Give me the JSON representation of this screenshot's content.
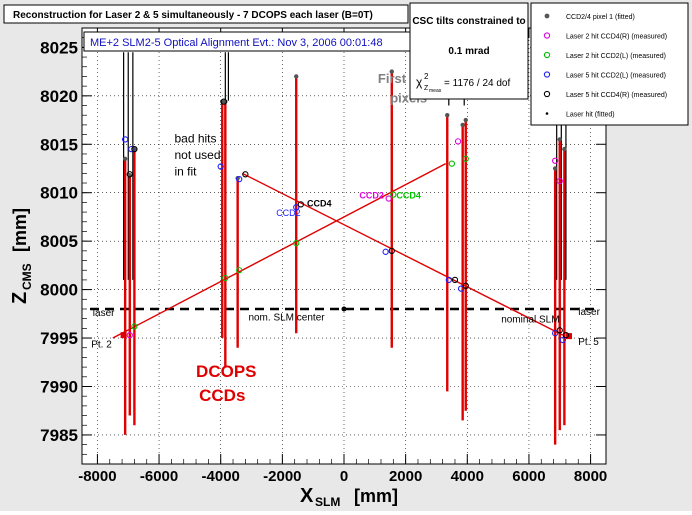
{
  "chart_data": {
    "type": "scatter",
    "title": "Reconstruction for Laser 2 & 5 simultaneously - 7 DCOPS each laser (B=0T)",
    "subtitle": "ME+2 SLM2-5 Optical Alignment Evt.:  Nov 3, 2006 00:01:48",
    "xlabel": "X",
    "xlabel_sub": "SLM",
    "xlabel_unit": "[mm]",
    "ylabel": "Z",
    "ylabel_sub": "CMS",
    "ylabel_unit": "[mm]",
    "xlim": [
      -8500,
      8500
    ],
    "ylim": [
      7982,
      8027
    ],
    "x_ticks": [
      -8000,
      -6000,
      -4000,
      -2000,
      0,
      2000,
      4000,
      6000,
      8000
    ],
    "x_tick_labels": [
      "-8000",
      "-6000",
      "-4000",
      "-2000",
      "0",
      "2000",
      "4000",
      "6000",
      "8000"
    ],
    "y_ticks": [
      7985,
      7990,
      7995,
      8000,
      8005,
      8010,
      8015,
      8020,
      8025
    ],
    "y_tick_labels": [
      "7985",
      "7990",
      "7995",
      "8000",
      "8005",
      "8010",
      "8015",
      "8020",
      "8025"
    ],
    "grid": true,
    "legend_position": "top-right",
    "legend": [
      {
        "label": "CCD2/4 pixel 1 (fitted)",
        "marker": "dot",
        "color": "#555555"
      },
      {
        "label": "Laser 2 hit CCD4(R) (measured)",
        "marker": "circle",
        "color": "#e000e0"
      },
      {
        "label": "Laser 2 hit CCD2(L) (measured)",
        "marker": "circle",
        "color": "#00c000"
      },
      {
        "label": "Laser 5 hit CCD2(L) (measured)",
        "marker": "circle",
        "color": "#2020ff"
      },
      {
        "label": "Laser 5 hit CCD4(R) (measured)",
        "marker": "circle",
        "color": "#000000"
      },
      {
        "label": "Laser hit (fitted)",
        "marker": "small-dot",
        "color": "#000000"
      }
    ],
    "constraint_box": {
      "line1": "CSC tilts constrained to",
      "line2": "0.1 mrad",
      "chi2_symbol": "χ",
      "chi2_exp": "2",
      "chi2_sub": "Z",
      "chi2_subsub": "meas",
      "chi2_text": "= 1176 / 24 dof"
    },
    "ccd_pixel_lines": [
      {
        "x": -7150,
        "top": 8024.5,
        "bottom": 8001.0
      },
      {
        "x": -7000,
        "top": 8024.5,
        "bottom": 8001.0
      },
      {
        "x": -6850,
        "top": 8024.5,
        "bottom": 8001.0
      },
      {
        "x": -3850,
        "top": 8024.5,
        "bottom": 8019.5
      },
      {
        "x": -3750,
        "top": 8024.5,
        "bottom": 8019.5
      },
      {
        "x": 3400,
        "top": 8024.5,
        "bottom": 8019.0
      },
      {
        "x": 3900,
        "top": 8024.5,
        "bottom": 8019.0
      },
      {
        "x": 6900,
        "top": 8024.5,
        "bottom": 8001.0
      },
      {
        "x": 7050,
        "top": 8024.5,
        "bottom": 8001.0
      },
      {
        "x": 7200,
        "top": 8024.5,
        "bottom": 8001.0
      }
    ],
    "dcops_ccds": [
      {
        "x": -7100,
        "top": 8013.5,
        "bottom": 7985.0
      },
      {
        "x": -6950,
        "top": 8011.8,
        "bottom": 7987.0
      },
      {
        "x": -6800,
        "top": 8014.5,
        "bottom": 7986.0
      },
      {
        "x": -3950,
        "top": 8019.4,
        "bottom": 7995.0
      },
      {
        "x": -3850,
        "top": 8019.4,
        "bottom": 7992.0
      },
      {
        "x": -3450,
        "top": 8011.5,
        "bottom": 7994.0
      },
      {
        "x": -1550,
        "top": 8022.0,
        "bottom": 7995.5
      },
      {
        "x": 1550,
        "top": 8022.5,
        "bottom": 7994.0
      },
      {
        "x": 3350,
        "top": 8018.0,
        "bottom": 7989.5
      },
      {
        "x": 3850,
        "top": 8017.0,
        "bottom": 7986.5
      },
      {
        "x": 3950,
        "top": 8017.5,
        "bottom": 7987.5
      },
      {
        "x": 6850,
        "top": 8012.5,
        "bottom": 7984.0
      },
      {
        "x": 7000,
        "top": 8015.5,
        "bottom": 7985.5
      },
      {
        "x": 7150,
        "top": 8014.5,
        "bottom": 7986.0
      }
    ],
    "laser_lines": [
      {
        "name": "Laser 2",
        "points": [
          [
            -7500,
            7995.0
          ],
          [
            3300,
            8013.0
          ]
        ]
      },
      {
        "name": "Laser 5",
        "points": [
          [
            -3300,
            8012.0
          ],
          [
            7100,
            7995.3
          ]
        ]
      }
    ],
    "nominal_slm": {
      "x": [
        -8500,
        8500
      ],
      "z": 7998.0,
      "center_x": 0
    },
    "laser_start_points": [
      {
        "name": "Pt. 2",
        "x": -7150,
        "z": 7995.3
      },
      {
        "name": "Pt. 5",
        "x": 7300,
        "z": 7995.2
      }
    ],
    "measured_hits": [
      {
        "x": -7100,
        "z": 8015.5,
        "color": "#2020ff"
      },
      {
        "x": -6950,
        "z": 8011.9,
        "color": "#000000"
      },
      {
        "x": -6900,
        "z": 8014.5,
        "color": "#2020ff"
      },
      {
        "x": -6800,
        "z": 8014.5,
        "color": "#000000"
      },
      {
        "x": -6950,
        "z": 7995.3,
        "color": "#e000e0"
      },
      {
        "x": -6800,
        "z": 7996.2,
        "color": "#00c000"
      },
      {
        "x": -3900,
        "z": 8019.4,
        "color": "#000000"
      },
      {
        "x": -4000,
        "z": 8012.7,
        "color": "#2020ff"
      },
      {
        "x": -3400,
        "z": 8011.4,
        "color": "#2020ff"
      },
      {
        "x": -3200,
        "z": 8011.9,
        "color": "#000000"
      },
      {
        "x": -3850,
        "z": 8001.2,
        "color": "#00c000"
      },
      {
        "x": -3400,
        "z": 8002.0,
        "color": "#00c000"
      },
      {
        "x": -1550,
        "z": 8008.5,
        "color": "#2020ff"
      },
      {
        "x": -1400,
        "z": 8008.8,
        "color": "#000000"
      },
      {
        "x": -1550,
        "z": 8004.8,
        "color": "#00c000"
      },
      {
        "x": 1350,
        "z": 8003.9,
        "color": "#2020ff"
      },
      {
        "x": 1550,
        "z": 8004.0,
        "color": "#000000"
      },
      {
        "x": 1450,
        "z": 8009.4,
        "color": "#e000e0"
      },
      {
        "x": 1600,
        "z": 8009.8,
        "color": "#00c000"
      },
      {
        "x": 3500,
        "z": 8013.0,
        "color": "#00c000"
      },
      {
        "x": 3700,
        "z": 8015.3,
        "color": "#e000e0"
      },
      {
        "x": 3950,
        "z": 8013.5,
        "color": "#00c000"
      },
      {
        "x": 3400,
        "z": 8001.0,
        "color": "#2020ff"
      },
      {
        "x": 3600,
        "z": 8001.0,
        "color": "#000000"
      },
      {
        "x": 3800,
        "z": 8000.1,
        "color": "#2020ff"
      },
      {
        "x": 3950,
        "z": 8000.4,
        "color": "#000000"
      },
      {
        "x": 6850,
        "z": 8013.3,
        "color": "#e000e0"
      },
      {
        "x": 7000,
        "z": 8011.2,
        "color": "#e000e0"
      },
      {
        "x": 6850,
        "z": 7995.5,
        "color": "#2020ff"
      },
      {
        "x": 7000,
        "z": 7995.8,
        "color": "#000000"
      },
      {
        "x": 7100,
        "z": 7994.8,
        "color": "#2020ff"
      },
      {
        "x": 7200,
        "z": 7995.3,
        "color": "#000000"
      }
    ],
    "annotations": [
      {
        "text": "bad hits",
        "x": -5500,
        "z": 8015.2,
        "color": "#000000",
        "size": 12,
        "weight": "normal"
      },
      {
        "text": "not used",
        "x": -5500,
        "z": 8013.5,
        "color": "#000000",
        "size": 12,
        "weight": "normal"
      },
      {
        "text": "in fit",
        "x": -5500,
        "z": 8011.8,
        "color": "#000000",
        "size": 12,
        "weight": "normal"
      },
      {
        "text": "First CCD",
        "x": 1100,
        "z": 8021.3,
        "color": "#808080",
        "size": 13,
        "weight": "bold"
      },
      {
        "text": "pixels",
        "x": 1500,
        "z": 8019.3,
        "color": "#808080",
        "size": 13,
        "weight": "bold"
      },
      {
        "text": "DCOPS",
        "x": -4800,
        "z": 7991.0,
        "color": "#e00000",
        "size": 17,
        "weight": "bold"
      },
      {
        "text": "CCDs",
        "x": -4700,
        "z": 7988.5,
        "color": "#e00000",
        "size": 17,
        "weight": "bold"
      },
      {
        "text": "CCD2",
        "x": -2200,
        "z": 8007.6,
        "color": "#2020ff",
        "size": 9,
        "weight": "normal"
      },
      {
        "text": "CCD4",
        "x": -1200,
        "z": 8008.6,
        "color": "#000000",
        "size": 9,
        "weight": "bold"
      },
      {
        "text": "CCD2",
        "x": 500,
        "z": 8009.4,
        "color": "#e000e0",
        "size": 9,
        "weight": "bold"
      },
      {
        "text": "CCD4",
        "x": 1700,
        "z": 8009.4,
        "color": "#00c000",
        "size": 9,
        "weight": "bold"
      },
      {
        "text": "laser",
        "x": -8150,
        "z": 7997.3,
        "color": "#000000",
        "size": 10,
        "weight": "normal"
      },
      {
        "text": "Pt. 2",
        "x": -8200,
        "z": 7994.0,
        "color": "#000000",
        "size": 10,
        "weight": "normal"
      },
      {
        "text": "nom. SLM center",
        "x": -3100,
        "z": 7996.8,
        "color": "#000000",
        "size": 10,
        "weight": "normal"
      },
      {
        "text": "nominal SLM",
        "x": 5100,
        "z": 7996.6,
        "color": "#000000",
        "size": 10,
        "weight": "normal"
      },
      {
        "text": "laser",
        "x": 7600,
        "z": 7997.4,
        "color": "#000000",
        "size": 10,
        "weight": "normal"
      },
      {
        "text": "Pt. 5",
        "x": 7600,
        "z": 7994.3,
        "color": "#000000",
        "size": 10,
        "weight": "normal"
      }
    ]
  }
}
